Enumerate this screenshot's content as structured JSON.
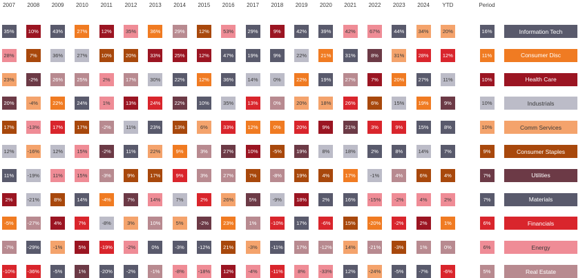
{
  "chart_data": {
    "type": "table",
    "columns": [
      "2007",
      "2008",
      "2009",
      "2010",
      "2011",
      "2012",
      "2013",
      "2014",
      "2015",
      "2016",
      "2017",
      "2018",
      "2019",
      "2020",
      "2021",
      "2022",
      "2023",
      "2024",
      "YTD"
    ],
    "period_label": "Period",
    "sectors": [
      {
        "name": "Information Tech",
        "color": "#595a6c",
        "period": "16%"
      },
      {
        "name": "Consumer Disc",
        "color": "#f07b22",
        "period": "11%"
      },
      {
        "name": "Health Care",
        "color": "#9b1522",
        "period": "10%"
      },
      {
        "name": "Industrials",
        "color": "#bcbcc8",
        "period": "10%"
      },
      {
        "name": "Comm Services",
        "color": "#f4a36c",
        "period": "10%"
      },
      {
        "name": "Consumer Staples",
        "color": "#a8480c",
        "period": "9%"
      },
      {
        "name": "Utilities",
        "color": "#6c3a46",
        "period": "7%"
      },
      {
        "name": "Materials",
        "color": "#595a6c",
        "period": "7%"
      },
      {
        "name": "Financials",
        "color": "#d9252c",
        "period": "6%"
      },
      {
        "name": "Energy",
        "color": "#ef8c96",
        "period": "6%"
      },
      {
        "name": "Real Estate",
        "color": "#b88a90",
        "period": "5%"
      }
    ],
    "grid": [
      [
        {
          "v": "35%",
          "s": "Information Tech"
        },
        {
          "v": "10%",
          "s": "Health Care"
        },
        {
          "v": "43%",
          "s": "Information Tech"
        },
        {
          "v": "27%",
          "s": "Consumer Disc"
        },
        {
          "v": "12%",
          "s": "Health Care"
        },
        {
          "v": "35%",
          "s": "Energy"
        },
        {
          "v": "36%",
          "s": "Consumer Disc"
        },
        {
          "v": "29%",
          "s": "Real Estate"
        },
        {
          "v": "12%",
          "s": "Consumer Staples"
        },
        {
          "v": "53%",
          "s": "Energy"
        },
        {
          "v": "29%",
          "s": "Information Tech"
        },
        {
          "v": "9%",
          "s": "Health Care"
        },
        {
          "v": "42%",
          "s": "Information Tech"
        },
        {
          "v": "39%",
          "s": "Information Tech"
        },
        {
          "v": "42%",
          "s": "Energy"
        },
        {
          "v": "67%",
          "s": "Energy"
        },
        {
          "v": "44%",
          "s": "Information Tech"
        },
        {
          "v": "34%",
          "s": "Comm Services"
        },
        {
          "v": "20%",
          "s": "Comm Services"
        }
      ],
      [
        {
          "v": "28%",
          "s": "Energy"
        },
        {
          "v": "7%",
          "s": "Consumer Staples"
        },
        {
          "v": "36%",
          "s": "Industrials"
        },
        {
          "v": "27%",
          "s": "Industrials"
        },
        {
          "v": "10%",
          "s": "Consumer Staples"
        },
        {
          "v": "20%",
          "s": "Consumer Staples"
        },
        {
          "v": "33%",
          "s": "Health Care"
        },
        {
          "v": "25%",
          "s": "Health Care"
        },
        {
          "v": "12%",
          "s": "Health Care"
        },
        {
          "v": "47%",
          "s": "Information Tech"
        },
        {
          "v": "19%",
          "s": "Information Tech"
        },
        {
          "v": "9%",
          "s": "Information Tech"
        },
        {
          "v": "22%",
          "s": "Industrials"
        },
        {
          "v": "21%",
          "s": "Consumer Disc"
        },
        {
          "v": "31%",
          "s": "Information Tech"
        },
        {
          "v": "8%",
          "s": "Utilities"
        },
        {
          "v": "31%",
          "s": "Comm Services"
        },
        {
          "v": "28%",
          "s": "Financials"
        },
        {
          "v": "12%",
          "s": "Financials"
        }
      ],
      [
        {
          "v": "23%",
          "s": "Comm Services"
        },
        {
          "v": "-2%",
          "s": "Utilities"
        },
        {
          "v": "26%",
          "s": "Real Estate"
        },
        {
          "v": "25%",
          "s": "Real Estate"
        },
        {
          "v": "2%",
          "s": "Energy"
        },
        {
          "v": "17%",
          "s": "Real Estate"
        },
        {
          "v": "30%",
          "s": "Industrials"
        },
        {
          "v": "22%",
          "s": "Information Tech"
        },
        {
          "v": "12%",
          "s": "Consumer Disc"
        },
        {
          "v": "36%",
          "s": "Information Tech"
        },
        {
          "v": "14%",
          "s": "Industrials"
        },
        {
          "v": "0%",
          "s": "Industrials"
        },
        {
          "v": "22%",
          "s": "Consumer Disc"
        },
        {
          "v": "19%",
          "s": "Information Tech"
        },
        {
          "v": "27%",
          "s": "Real Estate"
        },
        {
          "v": "7%",
          "s": "Health Care"
        },
        {
          "v": "20%",
          "s": "Consumer Disc"
        },
        {
          "v": "27%",
          "s": "Information Tech"
        },
        {
          "v": "11%",
          "s": "Industrials"
        }
      ],
      [
        {
          "v": "20%",
          "s": "Utilities"
        },
        {
          "v": "-4%",
          "s": "Comm Services"
        },
        {
          "v": "22%",
          "s": "Consumer Disc"
        },
        {
          "v": "24%",
          "s": "Information Tech"
        },
        {
          "v": "1%",
          "s": "Energy"
        },
        {
          "v": "13%",
          "s": "Health Care"
        },
        {
          "v": "24%",
          "s": "Financials"
        },
        {
          "v": "22%",
          "s": "Utilities"
        },
        {
          "v": "10%",
          "s": "Information Tech"
        },
        {
          "v": "35%",
          "s": "Industrials"
        },
        {
          "v": "13%",
          "s": "Financials"
        },
        {
          "v": "0%",
          "s": "Real Estate"
        },
        {
          "v": "20%",
          "s": "Comm Services"
        },
        {
          "v": "18%",
          "s": "Comm Services"
        },
        {
          "v": "26%",
          "s": "Financials"
        },
        {
          "v": "6%",
          "s": "Consumer Staples"
        },
        {
          "v": "15%",
          "s": "Industrials"
        },
        {
          "v": "19%",
          "s": "Consumer Disc"
        },
        {
          "v": "9%",
          "s": "Utilities"
        }
      ],
      [
        {
          "v": "17%",
          "s": "Consumer Staples"
        },
        {
          "v": "-13%",
          "s": "Energy"
        },
        {
          "v": "17%",
          "s": "Financials"
        },
        {
          "v": "17%",
          "s": "Consumer Staples"
        },
        {
          "v": "-2%",
          "s": "Real Estate"
        },
        {
          "v": "11%",
          "s": "Industrials"
        },
        {
          "v": "23%",
          "s": "Information Tech"
        },
        {
          "v": "13%",
          "s": "Consumer Staples"
        },
        {
          "v": "6%",
          "s": "Comm Services"
        },
        {
          "v": "33%",
          "s": "Financials"
        },
        {
          "v": "12%",
          "s": "Consumer Disc"
        },
        {
          "v": "0%",
          "s": "Consumer Disc"
        },
        {
          "v": "20%",
          "s": "Financials"
        },
        {
          "v": "9%",
          "s": "Health Care"
        },
        {
          "v": "21%",
          "s": "Utilities"
        },
        {
          "v": "3%",
          "s": "Financials"
        },
        {
          "v": "9%",
          "s": "Financials"
        },
        {
          "v": "15%",
          "s": "Information Tech"
        },
        {
          "v": "8%",
          "s": "Information Tech"
        }
      ],
      [
        {
          "v": "12%",
          "s": "Industrials"
        },
        {
          "v": "-16%",
          "s": "Comm Services"
        },
        {
          "v": "12%",
          "s": "Industrials"
        },
        {
          "v": "15%",
          "s": "Energy"
        },
        {
          "v": "-2%",
          "s": "Utilities"
        },
        {
          "v": "11%",
          "s": "Information Tech"
        },
        {
          "v": "22%",
          "s": "Comm Services"
        },
        {
          "v": "9%",
          "s": "Consumer Disc"
        },
        {
          "v": "3%",
          "s": "Real Estate"
        },
        {
          "v": "27%",
          "s": "Utilities"
        },
        {
          "v": "10%",
          "s": "Health Care"
        },
        {
          "v": "-5%",
          "s": "Consumer Staples"
        },
        {
          "v": "19%",
          "s": "Utilities"
        },
        {
          "v": "8%",
          "s": "Industrials"
        },
        {
          "v": "18%",
          "s": "Industrials"
        },
        {
          "v": "2%",
          "s": "Information Tech"
        },
        {
          "v": "8%",
          "s": "Information Tech"
        },
        {
          "v": "14%",
          "s": "Industrials"
        },
        {
          "v": "7%",
          "s": "Information Tech"
        }
      ],
      [
        {
          "v": "11%",
          "s": "Information Tech"
        },
        {
          "v": "-19%",
          "s": "Industrials"
        },
        {
          "v": "11%",
          "s": "Energy"
        },
        {
          "v": "15%",
          "s": "Energy"
        },
        {
          "v": "-3%",
          "s": "Real Estate"
        },
        {
          "v": "9%",
          "s": "Consumer Staples"
        },
        {
          "v": "17%",
          "s": "Consumer Staples"
        },
        {
          "v": "9%",
          "s": "Financials"
        },
        {
          "v": "3%",
          "s": "Real Estate"
        },
        {
          "v": "27%",
          "s": "Real Estate"
        },
        {
          "v": "7%",
          "s": "Consumer Staples"
        },
        {
          "v": "-8%",
          "s": "Real Estate"
        },
        {
          "v": "19%",
          "s": "Consumer Staples"
        },
        {
          "v": "4%",
          "s": "Consumer Staples"
        },
        {
          "v": "17%",
          "s": "Consumer Disc"
        },
        {
          "v": "-1%",
          "s": "Industrials"
        },
        {
          "v": "4%",
          "s": "Real Estate"
        },
        {
          "v": "6%",
          "s": "Consumer Staples"
        },
        {
          "v": "4%",
          "s": "Consumer Staples"
        }
      ],
      [
        {
          "v": "2%",
          "s": "Health Care"
        },
        {
          "v": "-21%",
          "s": "Industrials"
        },
        {
          "v": "8%",
          "s": "Consumer Staples"
        },
        {
          "v": "14%",
          "s": "Information Tech"
        },
        {
          "v": "-4%",
          "s": "Consumer Disc"
        },
        {
          "v": "7%",
          "s": "Utilities"
        },
        {
          "v": "14%",
          "s": "Energy"
        },
        {
          "v": "7%",
          "s": "Industrials"
        },
        {
          "v": "2%",
          "s": "Financials"
        },
        {
          "v": "26%",
          "s": "Comm Services"
        },
        {
          "v": "5%",
          "s": "Utilities"
        },
        {
          "v": "-9%",
          "s": "Industrials"
        },
        {
          "v": "18%",
          "s": "Health Care"
        },
        {
          "v": "2%",
          "s": "Information Tech"
        },
        {
          "v": "16%",
          "s": "Information Tech"
        },
        {
          "v": "-15%",
          "s": "Energy"
        },
        {
          "v": "-2%",
          "s": "Energy"
        },
        {
          "v": "4%",
          "s": "Energy"
        },
        {
          "v": "2%",
          "s": "Energy"
        }
      ],
      [
        {
          "v": "-5%",
          "s": "Consumer Disc"
        },
        {
          "v": "-27%",
          "s": "Real Estate"
        },
        {
          "v": "4%",
          "s": "Health Care"
        },
        {
          "v": "7%",
          "s": "Financials"
        },
        {
          "v": "-8%",
          "s": "Industrials"
        },
        {
          "v": "3%",
          "s": "Comm Services"
        },
        {
          "v": "10%",
          "s": "Real Estate"
        },
        {
          "v": "5%",
          "s": "Comm Services"
        },
        {
          "v": "-2%",
          "s": "Utilities"
        },
        {
          "v": "23%",
          "s": "Consumer Disc"
        },
        {
          "v": "1%",
          "s": "Real Estate"
        },
        {
          "v": "-10%",
          "s": "Financials"
        },
        {
          "v": "17%",
          "s": "Information Tech"
        },
        {
          "v": "-6%",
          "s": "Financials"
        },
        {
          "v": "15%",
          "s": "Consumer Staples"
        },
        {
          "v": "-20%",
          "s": "Consumer Disc"
        },
        {
          "v": "-2%",
          "s": "Financials"
        },
        {
          "v": "2%",
          "s": "Health Care"
        },
        {
          "v": "1%",
          "s": "Consumer Disc"
        }
      ],
      [
        {
          "v": "-7%",
          "s": "Real Estate"
        },
        {
          "v": "-29%",
          "s": "Information Tech"
        },
        {
          "v": "-1%",
          "s": "Comm Services"
        },
        {
          "v": "5%",
          "s": "Health Care"
        },
        {
          "v": "-19%",
          "s": "Financials"
        },
        {
          "v": "-2%",
          "s": "Energy"
        },
        {
          "v": "0%",
          "s": "Information Tech"
        },
        {
          "v": "-3%",
          "s": "Information Tech"
        },
        {
          "v": "-12%",
          "s": "Information Tech"
        },
        {
          "v": "21%",
          "s": "Consumer Staples"
        },
        {
          "v": "-3%",
          "s": "Comm Services"
        },
        {
          "v": "-11%",
          "s": "Information Tech"
        },
        {
          "v": "17%",
          "s": "Real Estate"
        },
        {
          "v": "-12%",
          "s": "Real Estate"
        },
        {
          "v": "14%",
          "s": "Comm Services"
        },
        {
          "v": "-21%",
          "s": "Real Estate"
        },
        {
          "v": "-3%",
          "s": "Consumer Staples"
        },
        {
          "v": "1%",
          "s": "Real Estate"
        },
        {
          "v": "0%",
          "s": "Real Estate"
        }
      ],
      [
        {
          "v": "-10%",
          "s": "Financials"
        },
        {
          "v": "-36%",
          "s": "Financials"
        },
        {
          "v": "-5%",
          "s": "Information Tech"
        },
        {
          "v": "1%",
          "s": "Utilities"
        },
        {
          "v": "-20%",
          "s": "Information Tech"
        },
        {
          "v": "-2%",
          "s": "Information Tech"
        },
        {
          "v": "-1%",
          "s": "Real Estate"
        },
        {
          "v": "-8%",
          "s": "Energy"
        },
        {
          "v": "-18%",
          "s": "Energy"
        },
        {
          "v": "12%",
          "s": "Health Care"
        },
        {
          "v": "-4%",
          "s": "Energy"
        },
        {
          "v": "-11%",
          "s": "Financials"
        },
        {
          "v": "8%",
          "s": "Energy"
        },
        {
          "v": "-33%",
          "s": "Energy"
        },
        {
          "v": "12%",
          "s": "Information Tech"
        },
        {
          "v": "-24%",
          "s": "Comm Services"
        },
        {
          "v": "-5%",
          "s": "Information Tech"
        },
        {
          "v": "-7%",
          "s": "Information Tech"
        },
        {
          "v": "-6%",
          "s": "Financials"
        }
      ]
    ]
  }
}
